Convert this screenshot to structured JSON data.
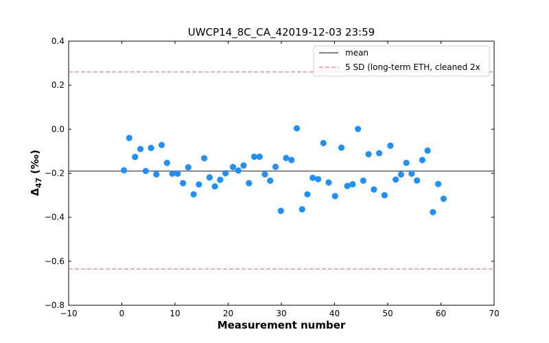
{
  "chart_data": {
    "type": "scatter",
    "title": "UWCP14_8C_CA_42019-12-03 23:59",
    "xlabel": "Measurement number",
    "ylabel_main": "Δ",
    "ylabel_sub": "47",
    "ylabel_unit": " (‰)",
    "xlim": [
      -10,
      70
    ],
    "ylim": [
      -0.8,
      0.4
    ],
    "xticks": [
      -10,
      0,
      10,
      20,
      30,
      40,
      50,
      60,
      70
    ],
    "xtick_labels": [
      "−10",
      "0",
      "10",
      "20",
      "30",
      "40",
      "50",
      "60",
      "70"
    ],
    "yticks": [
      -0.8,
      -0.6,
      -0.4,
      -0.2,
      0.0,
      0.2,
      0.4
    ],
    "ytick_labels": [
      "−0.8",
      "−0.6",
      "−0.4",
      "−0.2",
      "0.0",
      "0.2",
      "0.4"
    ],
    "grid": false,
    "legend_position": "top-right",
    "mean": -0.19,
    "sd_upper": 0.26,
    "sd_lower": -0.635,
    "legend": [
      {
        "label": "mean",
        "style": "solid",
        "color": "#333333"
      },
      {
        "label": "5 SD (long-term ETH, cleaned 2x",
        "style": "dashed",
        "color": "#e8909c"
      }
    ],
    "point_color": "#1e90ff",
    "points": [
      {
        "x": 0.4,
        "y": -0.187
      },
      {
        "x": 1.4,
        "y": -0.04
      },
      {
        "x": 2.5,
        "y": -0.126
      },
      {
        "x": 3.5,
        "y": -0.09
      },
      {
        "x": 4.5,
        "y": -0.19
      },
      {
        "x": 5.5,
        "y": -0.085
      },
      {
        "x": 6.5,
        "y": -0.205
      },
      {
        "x": 7.5,
        "y": -0.072
      },
      {
        "x": 8.5,
        "y": -0.153
      },
      {
        "x": 9.5,
        "y": -0.202
      },
      {
        "x": 10.5,
        "y": -0.202
      },
      {
        "x": 11.5,
        "y": -0.245
      },
      {
        "x": 12.5,
        "y": -0.173
      },
      {
        "x": 13.5,
        "y": -0.296
      },
      {
        "x": 14.5,
        "y": -0.251
      },
      {
        "x": 15.5,
        "y": -0.132
      },
      {
        "x": 16.5,
        "y": -0.219
      },
      {
        "x": 17.5,
        "y": -0.26
      },
      {
        "x": 18.5,
        "y": -0.23
      },
      {
        "x": 19.5,
        "y": -0.2
      },
      {
        "x": 20.9,
        "y": -0.172
      },
      {
        "x": 21.9,
        "y": -0.188
      },
      {
        "x": 22.9,
        "y": -0.165
      },
      {
        "x": 23.9,
        "y": -0.245
      },
      {
        "x": 24.9,
        "y": -0.125
      },
      {
        "x": 25.9,
        "y": -0.125
      },
      {
        "x": 26.9,
        "y": -0.205
      },
      {
        "x": 27.9,
        "y": -0.234
      },
      {
        "x": 28.9,
        "y": -0.171
      },
      {
        "x": 29.9,
        "y": -0.371
      },
      {
        "x": 30.9,
        "y": -0.131
      },
      {
        "x": 31.9,
        "y": -0.14
      },
      {
        "x": 32.9,
        "y": 0.004
      },
      {
        "x": 33.9,
        "y": -0.364
      },
      {
        "x": 34.9,
        "y": -0.296
      },
      {
        "x": 35.9,
        "y": -0.221
      },
      {
        "x": 36.9,
        "y": -0.227
      },
      {
        "x": 37.9,
        "y": -0.063
      },
      {
        "x": 38.9,
        "y": -0.242
      },
      {
        "x": 40.1,
        "y": -0.304
      },
      {
        "x": 41.3,
        "y": -0.084
      },
      {
        "x": 42.4,
        "y": -0.258
      },
      {
        "x": 43.4,
        "y": -0.25
      },
      {
        "x": 44.4,
        "y": 0.001
      },
      {
        "x": 45.4,
        "y": -0.234
      },
      {
        "x": 46.4,
        "y": -0.114
      },
      {
        "x": 47.4,
        "y": -0.274
      },
      {
        "x": 48.4,
        "y": -0.109
      },
      {
        "x": 49.4,
        "y": -0.3
      },
      {
        "x": 50.5,
        "y": -0.075
      },
      {
        "x": 51.5,
        "y": -0.229
      },
      {
        "x": 52.5,
        "y": -0.206
      },
      {
        "x": 53.5,
        "y": -0.153
      },
      {
        "x": 54.5,
        "y": -0.202
      },
      {
        "x": 55.5,
        "y": -0.233
      },
      {
        "x": 56.5,
        "y": -0.14
      },
      {
        "x": 57.5,
        "y": -0.097
      },
      {
        "x": 58.5,
        "y": -0.377
      },
      {
        "x": 59.5,
        "y": -0.249
      },
      {
        "x": 60.5,
        "y": -0.316
      }
    ]
  }
}
